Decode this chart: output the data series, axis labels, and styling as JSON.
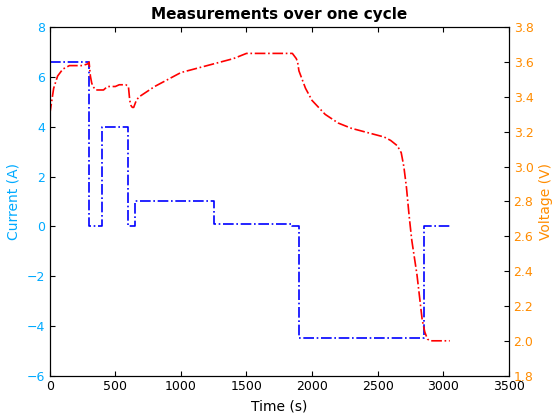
{
  "title": "Measurements over one cycle",
  "xlabel": "Time (s)",
  "ylabel_left": "Current (A)",
  "ylabel_right": "Voltage (V)",
  "xlim": [
    0,
    3500
  ],
  "ylim_left": [
    -6,
    8
  ],
  "ylim_right": [
    1.8,
    3.8
  ],
  "xticks": [
    0,
    500,
    1000,
    1500,
    2000,
    2500,
    3000,
    3500
  ],
  "yticks_left": [
    -6,
    -4,
    -2,
    0,
    2,
    4,
    6,
    8
  ],
  "yticks_right": [
    1.8,
    2.0,
    2.2,
    2.4,
    2.6,
    2.8,
    3.0,
    3.2,
    3.4,
    3.6,
    3.8
  ],
  "current_x": [
    0,
    300,
    300,
    400,
    400,
    600,
    600,
    650,
    650,
    1250,
    1250,
    1850,
    1850,
    1900,
    1900,
    2800,
    2800,
    2850,
    2850,
    3050,
    3050
  ],
  "current_y": [
    6.6,
    6.6,
    0.0,
    0.0,
    4.0,
    4.0,
    0.0,
    0.0,
    1.0,
    1.0,
    0.1,
    0.1,
    0.0,
    0.0,
    -4.5,
    -4.5,
    -4.5,
    -4.5,
    0.0,
    0.0,
    0.0
  ],
  "voltage_x": [
    0,
    30,
    60,
    100,
    150,
    200,
    250,
    290,
    300,
    305,
    310,
    320,
    330,
    350,
    370,
    390,
    410,
    440,
    470,
    500,
    530,
    560,
    580,
    600,
    605,
    610,
    620,
    630,
    640,
    650,
    660,
    680,
    720,
    800,
    900,
    1000,
    1100,
    1200,
    1300,
    1400,
    1500,
    1600,
    1700,
    1800,
    1850,
    1860,
    1870,
    1880,
    1890,
    1900,
    1950,
    2000,
    2100,
    2200,
    2300,
    2400,
    2500,
    2550,
    2600,
    2650,
    2680,
    2700,
    2720,
    2740,
    2760,
    2780,
    2800,
    2820,
    2840,
    2860,
    2880,
    2900,
    2950,
    3000,
    3050
  ],
  "voltage_y": [
    3.3,
    3.45,
    3.52,
    3.56,
    3.58,
    3.58,
    3.58,
    3.59,
    3.6,
    3.56,
    3.52,
    3.48,
    3.46,
    3.44,
    3.44,
    3.44,
    3.44,
    3.46,
    3.46,
    3.46,
    3.47,
    3.47,
    3.47,
    3.46,
    3.42,
    3.38,
    3.35,
    3.34,
    3.34,
    3.36,
    3.38,
    3.4,
    3.42,
    3.46,
    3.5,
    3.54,
    3.56,
    3.58,
    3.6,
    3.62,
    3.65,
    3.65,
    3.65,
    3.65,
    3.65,
    3.64,
    3.63,
    3.62,
    3.6,
    3.55,
    3.45,
    3.38,
    3.3,
    3.25,
    3.22,
    3.2,
    3.18,
    3.17,
    3.15,
    3.12,
    3.08,
    3.0,
    2.88,
    2.72,
    2.58,
    2.48,
    2.38,
    2.25,
    2.12,
    2.05,
    2.01,
    2.0,
    2.0,
    2.0,
    2.0
  ],
  "current_color": "#0000FF",
  "voltage_color": "#FF0000",
  "linestyle_current": "-.",
  "linestyle_voltage": "-.",
  "linewidth": 1.2,
  "ylabel_left_color": "#00AAFF",
  "ylabel_right_color": "#FF8C00",
  "tick_left_color": "#00AAFF",
  "tick_right_color": "#FF8C00",
  "background_color": "#FFFFFF",
  "title_fontsize": 11,
  "label_fontsize": 10,
  "tick_fontsize": 9
}
